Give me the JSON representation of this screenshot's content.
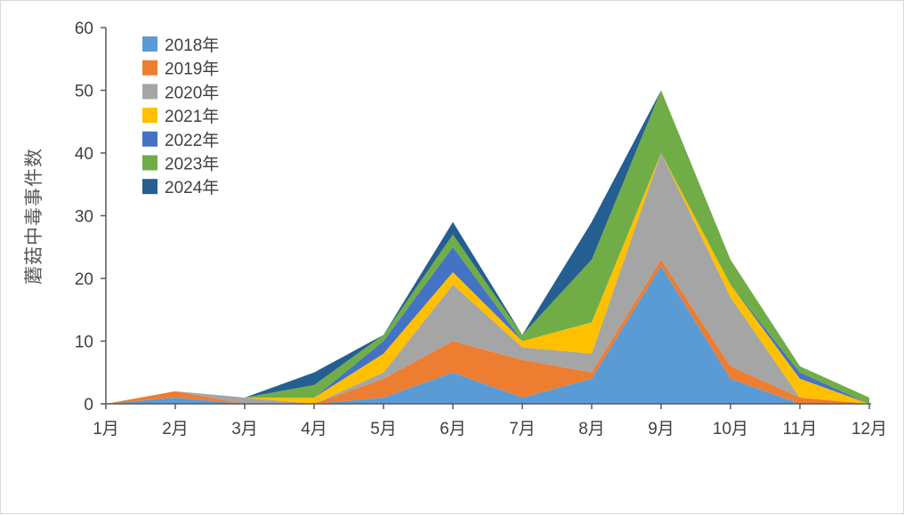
{
  "chart_data": {
    "type": "area",
    "stacked": true,
    "ylabel": "蘑菇中毒事件数",
    "xlabel": "",
    "categories": [
      "1月",
      "2月",
      "3月",
      "4月",
      "5月",
      "6月",
      "7月",
      "8月",
      "9月",
      "10月",
      "11月",
      "12月"
    ],
    "ylim": [
      0,
      60
    ],
    "yticks": [
      0,
      10,
      20,
      30,
      40,
      50,
      60
    ],
    "grid": false,
    "legend_position": "top-left",
    "series": [
      {
        "name": "2018年",
        "color": "#5B9BD5",
        "values": [
          0,
          1,
          0,
          0,
          1,
          5,
          1,
          4,
          22,
          4,
          0,
          0
        ]
      },
      {
        "name": "2019年",
        "color": "#ED7D31",
        "values": [
          0,
          1,
          0,
          0,
          3,
          5,
          6,
          1,
          1,
          2,
          1,
          0
        ]
      },
      {
        "name": "2020年",
        "color": "#A5A5A5",
        "values": [
          0,
          0,
          1,
          0,
          1,
          9,
          2,
          3,
          17,
          11,
          0,
          0
        ]
      },
      {
        "name": "2021年",
        "color": "#FFC000",
        "values": [
          0,
          0,
          0,
          1,
          3,
          2,
          1,
          5,
          0,
          2,
          3,
          0
        ]
      },
      {
        "name": "2022年",
        "color": "#4472C4",
        "values": [
          0,
          0,
          0,
          0,
          2,
          4,
          0,
          0,
          0,
          0,
          1,
          0
        ]
      },
      {
        "name": "2023年",
        "color": "#70AD47",
        "values": [
          0,
          0,
          0,
          2,
          1,
          2,
          1,
          10,
          10,
          4,
          1,
          1
        ]
      },
      {
        "name": "2024年",
        "color": "#255E91",
        "values": [
          0,
          0,
          0,
          2,
          0,
          2,
          0,
          6,
          0,
          0,
          0,
          0
        ]
      }
    ]
  }
}
